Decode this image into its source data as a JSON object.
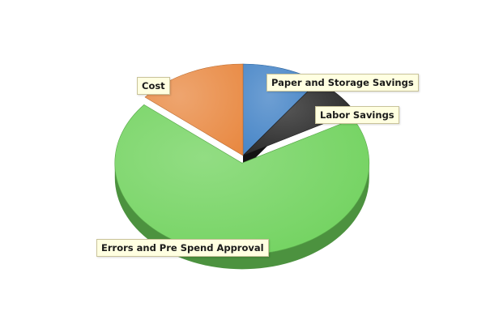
{
  "chart_data": {
    "type": "pie",
    "title": "",
    "slices": [
      {
        "label": "Paper and Storage Savings",
        "value": 10,
        "color": "#3d7fc4"
      },
      {
        "label": "Labor Savings",
        "value": 7,
        "color": "#1f1f1f"
      },
      {
        "label": "Errors and Pre Spend Approval",
        "value": 69,
        "color": "#6dd15a"
      },
      {
        "label": "Cost",
        "value": 14,
        "color": "#e8873f"
      }
    ],
    "legend": "none",
    "style": "3d-tilted",
    "exploded": "Errors and Pre Spend Approval"
  }
}
